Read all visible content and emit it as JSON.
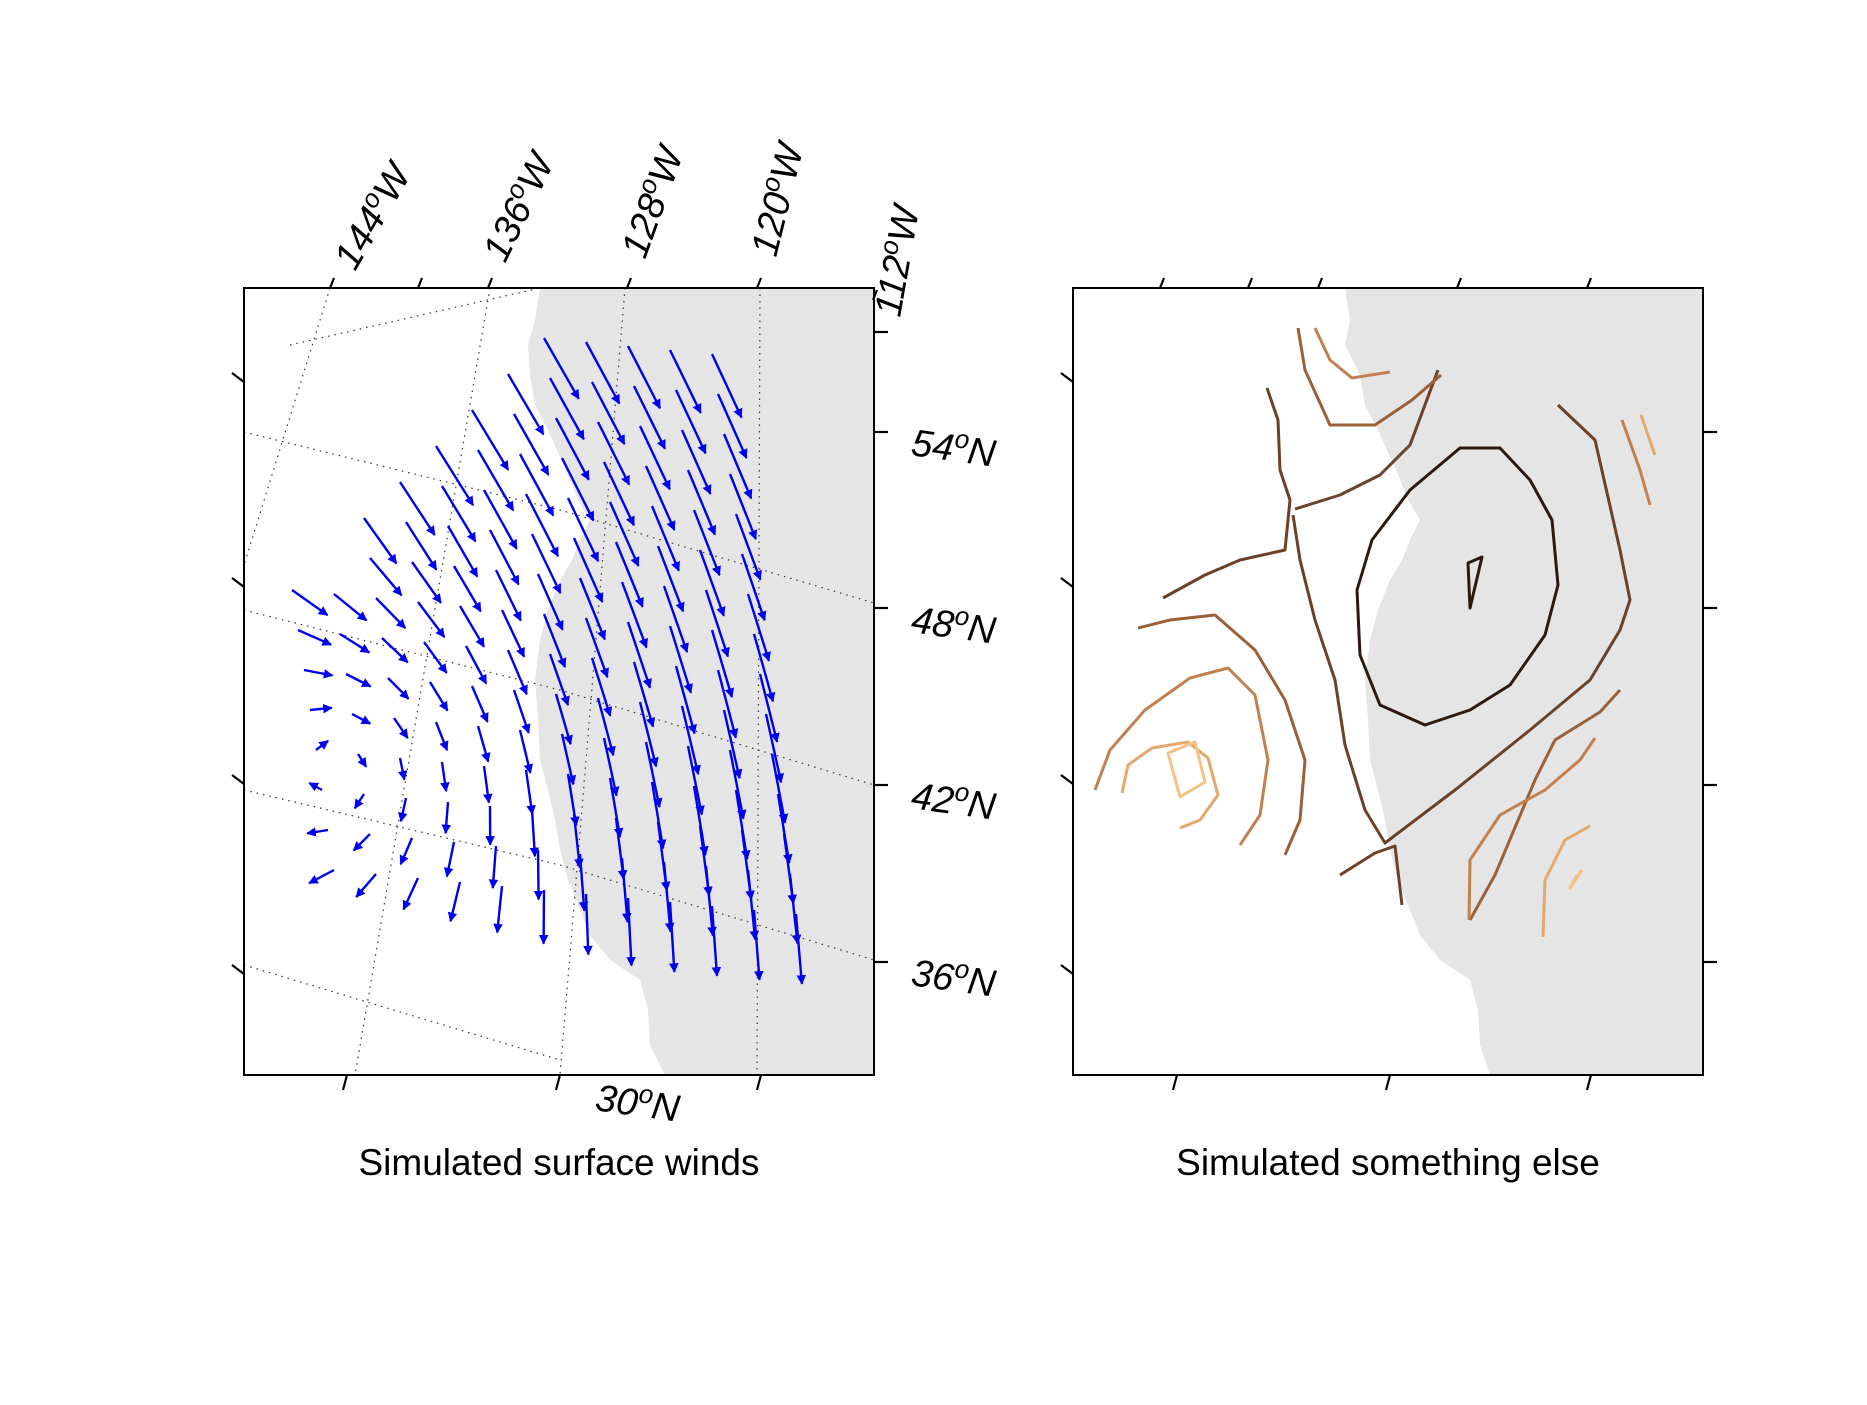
{
  "panels": [
    {
      "caption": "Simulated surface winds",
      "type": "vector-field",
      "arrow_color": "#0000ee",
      "land_color": "#e5e5e5",
      "lon_labels": [
        "144°W",
        "136°W",
        "128°W",
        "120°W",
        "112°W"
      ],
      "lat_labels": [
        "54°N",
        "48°N",
        "42°N",
        "36°N",
        "30°N"
      ]
    },
    {
      "caption": "Simulated something else",
      "type": "contour",
      "land_color": "#e5e5e5",
      "contour_colors": [
        "#2b1a12",
        "#6b4128",
        "#9a6038",
        "#c28050",
        "#e2a86c",
        "#f6c283"
      ]
    }
  ],
  "axis_text": {
    "lon": [
      {
        "num": "144",
        "sup": "o",
        "hemi": "W"
      },
      {
        "num": "136",
        "sup": "o",
        "hemi": "W"
      },
      {
        "num": "128",
        "sup": "o",
        "hemi": "W"
      },
      {
        "num": "120",
        "sup": "o",
        "hemi": "W"
      },
      {
        "num": "112",
        "sup": "o",
        "hemi": "W"
      }
    ],
    "lat": [
      {
        "num": "54",
        "sup": "o",
        "hemi": "N"
      },
      {
        "num": "48",
        "sup": "o",
        "hemi": "N"
      },
      {
        "num": "42",
        "sup": "o",
        "hemi": "N"
      },
      {
        "num": "36",
        "sup": "o",
        "hemi": "N"
      },
      {
        "num": "30",
        "sup": "o",
        "hemi": "N"
      }
    ]
  }
}
